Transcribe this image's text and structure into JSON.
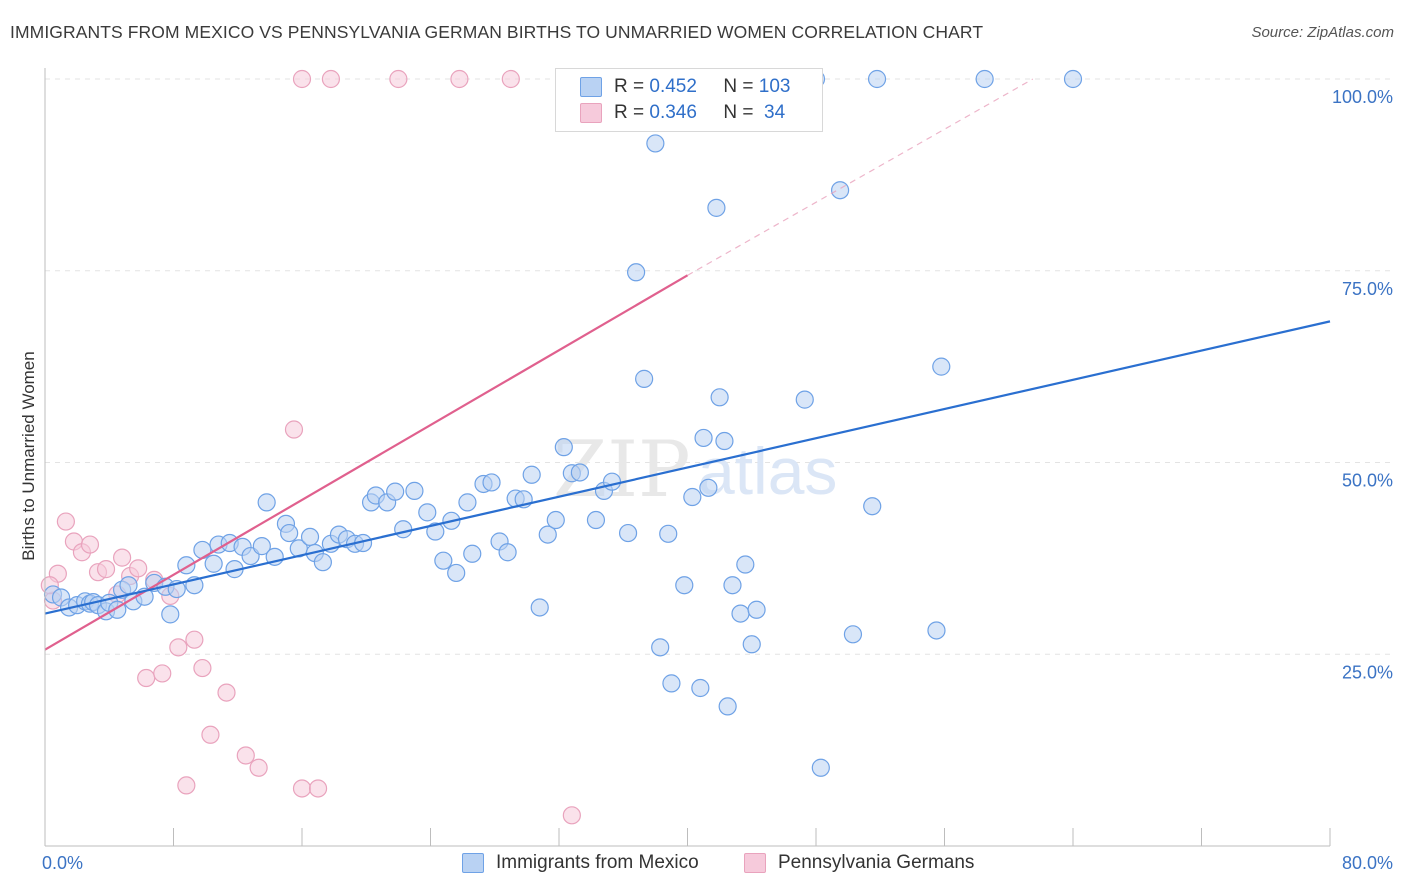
{
  "title": "IMMIGRANTS FROM MEXICO VS PENNSYLVANIA GERMAN BIRTHS TO UNMARRIED WOMEN CORRELATION CHART",
  "source": "Source: ZipAtlas.com",
  "watermark": {
    "zip": "ZIP",
    "atlas": "atlas"
  },
  "colors": {
    "blue": "#6fa2e6",
    "blue_fill": "#b9d2f3",
    "blue_line": "#2a6fd0",
    "pink": "#e9a3bd",
    "pink_fill": "#f6cadb",
    "pink_line": "#e0608e",
    "tick_text": "#3b73c4",
    "grid": "#e3e3e3"
  },
  "legend": {
    "rows": [
      {
        "r_label": "R = ",
        "r_value": "0.452",
        "n_label": "N = ",
        "n_value": "103"
      },
      {
        "r_label": "R = ",
        "r_value": "0.346",
        "n_label": "N = ",
        "n_value": " 34"
      }
    ]
  },
  "bottom_legend": [
    "Immigrants from Mexico",
    "Pennsylvania Germans"
  ],
  "chart_data": {
    "type": "scatter",
    "title": "IMMIGRANTS FROM MEXICO VS PENNSYLVANIA GERMAN BIRTHS TO UNMARRIED WOMEN CORRELATION CHART",
    "xlabel": "",
    "ylabel": "Births to Unmarried Women",
    "xlim": [
      0,
      80
    ],
    "ylim": [
      0,
      100
    ],
    "x_tick_labels": [
      "0.0%",
      "80.0%"
    ],
    "y_ticks": [
      25,
      50,
      75,
      100
    ],
    "y_tick_labels": [
      "25.0%",
      "50.0%",
      "75.0%",
      "100.0%"
    ],
    "grid": true,
    "legend_position": "top-center",
    "series": [
      {
        "name": "Immigrants from Mexico",
        "r": 0.452,
        "n": 103,
        "trend": {
          "x": [
            0,
            80
          ],
          "y": [
            30.3,
            68.4
          ],
          "style": "solid"
        },
        "points": [
          [
            0.5,
            32.8
          ],
          [
            1.0,
            32.4
          ],
          [
            1.5,
            31.1
          ],
          [
            2.0,
            31.4
          ],
          [
            2.5,
            31.9
          ],
          [
            2.8,
            31.6
          ],
          [
            3.0,
            31.8
          ],
          [
            3.3,
            31.4
          ],
          [
            3.8,
            30.6
          ],
          [
            4.0,
            31.7
          ],
          [
            4.5,
            30.8
          ],
          [
            4.8,
            33.4
          ],
          [
            5.2,
            34.0
          ],
          [
            5.5,
            31.9
          ],
          [
            6.2,
            32.5
          ],
          [
            6.8,
            34.3
          ],
          [
            7.5,
            33.8
          ],
          [
            7.8,
            30.2
          ],
          [
            8.2,
            33.5
          ],
          [
            8.8,
            36.6
          ],
          [
            9.3,
            34.0
          ],
          [
            9.8,
            38.6
          ],
          [
            10.5,
            36.8
          ],
          [
            10.8,
            39.3
          ],
          [
            11.5,
            39.5
          ],
          [
            11.8,
            36.1
          ],
          [
            12.3,
            39.0
          ],
          [
            12.8,
            37.8
          ],
          [
            13.5,
            39.1
          ],
          [
            13.8,
            44.8
          ],
          [
            14.3,
            37.7
          ],
          [
            15.0,
            42.0
          ],
          [
            15.2,
            40.8
          ],
          [
            15.8,
            38.8
          ],
          [
            16.5,
            40.3
          ],
          [
            16.8,
            38.2
          ],
          [
            17.3,
            37.0
          ],
          [
            17.8,
            39.4
          ],
          [
            18.3,
            40.6
          ],
          [
            18.8,
            40.0
          ],
          [
            19.3,
            39.4
          ],
          [
            19.8,
            39.5
          ],
          [
            20.3,
            44.8
          ],
          [
            20.6,
            45.7
          ],
          [
            21.3,
            44.8
          ],
          [
            21.8,
            46.2
          ],
          [
            22.3,
            41.3
          ],
          [
            23.0,
            46.3
          ],
          [
            23.8,
            43.5
          ],
          [
            24.3,
            41.0
          ],
          [
            24.8,
            37.2
          ],
          [
            25.3,
            42.4
          ],
          [
            25.6,
            35.6
          ],
          [
            26.3,
            44.8
          ],
          [
            26.6,
            38.1
          ],
          [
            27.3,
            47.2
          ],
          [
            27.8,
            47.4
          ],
          [
            28.3,
            39.7
          ],
          [
            28.8,
            38.3
          ],
          [
            29.3,
            45.3
          ],
          [
            29.8,
            45.2
          ],
          [
            30.3,
            48.4
          ],
          [
            30.8,
            31.1
          ],
          [
            31.3,
            40.6
          ],
          [
            31.8,
            42.5
          ],
          [
            32.3,
            52.0
          ],
          [
            32.8,
            48.6
          ],
          [
            33.3,
            48.7
          ],
          [
            34.3,
            42.5
          ],
          [
            34.8,
            46.3
          ],
          [
            35.3,
            47.5
          ],
          [
            36.3,
            40.8
          ],
          [
            36.8,
            74.8
          ],
          [
            37.3,
            60.9
          ],
          [
            38.0,
            91.6
          ],
          [
            38.3,
            25.9
          ],
          [
            38.8,
            40.7
          ],
          [
            39.0,
            21.2
          ],
          [
            39.8,
            34.0
          ],
          [
            40.3,
            45.5
          ],
          [
            40.8,
            20.6
          ],
          [
            41.0,
            53.2
          ],
          [
            41.3,
            46.7
          ],
          [
            41.8,
            83.2
          ],
          [
            42.0,
            58.5
          ],
          [
            42.3,
            52.8
          ],
          [
            42.5,
            18.2
          ],
          [
            42.8,
            34.0
          ],
          [
            43.3,
            30.3
          ],
          [
            43.6,
            36.7
          ],
          [
            44.0,
            26.3
          ],
          [
            44.3,
            30.8
          ],
          [
            47.3,
            58.2
          ],
          [
            48.3,
            10.2
          ],
          [
            49.5,
            85.5
          ],
          [
            50.3,
            27.6
          ],
          [
            51.5,
            44.3
          ],
          [
            55.5,
            28.1
          ],
          [
            55.8,
            62.5
          ],
          [
            48.0,
            100
          ],
          [
            51.8,
            100
          ],
          [
            58.5,
            100
          ],
          [
            64.0,
            100
          ]
        ]
      },
      {
        "name": "Pennsylvania Germans",
        "r": 0.346,
        "n": 34,
        "trend": {
          "x": [
            0,
            40
          ],
          "y": [
            25.6,
            74.4
          ],
          "style": "solid",
          "dashed_extension_to": [
            61.5,
            100
          ]
        },
        "points": [
          [
            0.5,
            32.0
          ],
          [
            0.8,
            35.5
          ],
          [
            1.3,
            42.3
          ],
          [
            1.8,
            39.7
          ],
          [
            2.3,
            38.3
          ],
          [
            2.8,
            39.3
          ],
          [
            3.3,
            35.7
          ],
          [
            3.8,
            36.1
          ],
          [
            4.5,
            32.8
          ],
          [
            4.8,
            37.6
          ],
          [
            5.3,
            35.2
          ],
          [
            5.8,
            36.2
          ],
          [
            6.3,
            21.9
          ],
          [
            6.8,
            34.7
          ],
          [
            7.3,
            22.5
          ],
          [
            7.8,
            32.6
          ],
          [
            8.3,
            25.9
          ],
          [
            8.8,
            7.9
          ],
          [
            9.3,
            26.9
          ],
          [
            9.8,
            23.2
          ],
          [
            10.3,
            14.5
          ],
          [
            11.3,
            20.0
          ],
          [
            12.5,
            11.8
          ],
          [
            13.3,
            10.2
          ],
          [
            15.5,
            54.3
          ],
          [
            16.0,
            7.5
          ],
          [
            17.0,
            7.5
          ],
          [
            32.8,
            4.0
          ],
          [
            16.0,
            100
          ],
          [
            17.8,
            100
          ],
          [
            22.0,
            100
          ],
          [
            25.8,
            100
          ],
          [
            29.0,
            100
          ],
          [
            0.3,
            34.0
          ]
        ]
      }
    ]
  }
}
